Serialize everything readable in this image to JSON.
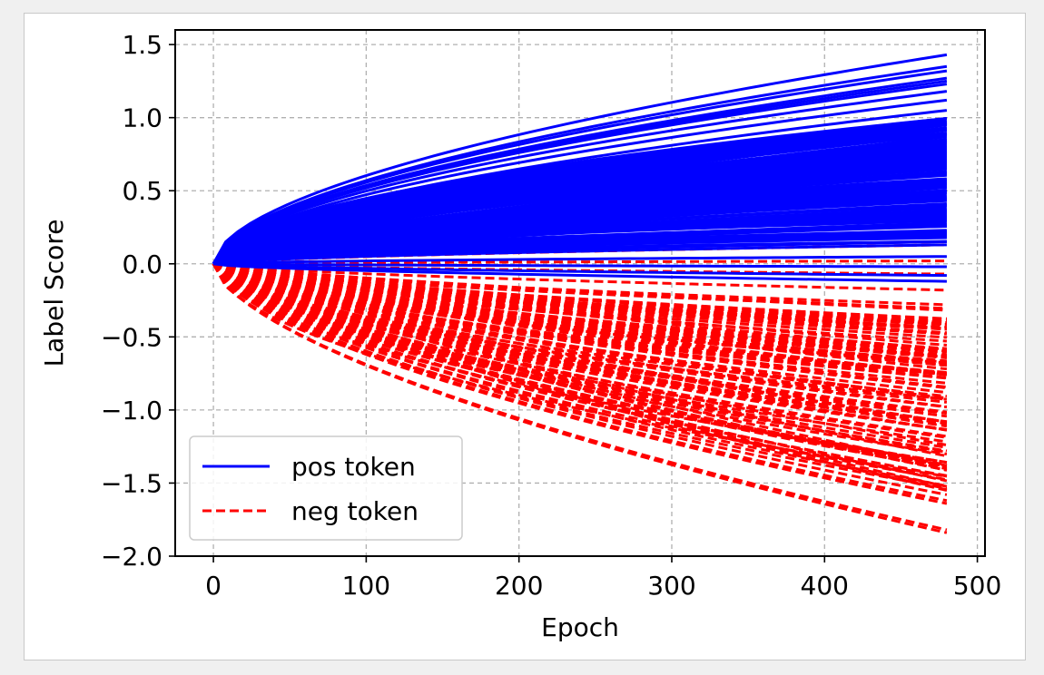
{
  "chart_data": {
    "type": "line",
    "title": "",
    "xlabel": "Epoch",
    "ylabel": "Label Score",
    "xlim": [
      -25,
      505
    ],
    "ylim": [
      -2.0,
      1.6
    ],
    "xticks": [
      0,
      100,
      200,
      300,
      400,
      500
    ],
    "yticks": [
      1.5,
      1.0,
      0.5,
      0.0,
      -0.5,
      -1.0,
      -1.5,
      -2.0
    ],
    "xtick_labels": [
      "0",
      "100",
      "200",
      "300",
      "400",
      "500"
    ],
    "ytick_labels": [
      "1.5",
      "1.0",
      "0.5",
      "0.0",
      "−0.5",
      "−1.0",
      "−1.5",
      "−2.0"
    ],
    "grid": true,
    "legend_position": "lower-left",
    "x_end": 480,
    "series": [
      {
        "name": "pos token",
        "color": "#0000ff",
        "style": "solid",
        "notable_final_values": [
          1.43,
          1.35,
          1.32,
          1.27,
          1.25,
          1.23,
          1.18,
          1.12,
          1.05,
          0.98,
          0.92,
          0.85,
          0.78,
          0.7,
          0.62,
          0.55,
          0.47,
          0.4,
          0.33,
          0.26,
          0.2,
          0.13,
          0.05,
          -0.02,
          -0.08,
          -0.12
        ],
        "band_final_range": [
          0.15,
          1.0
        ]
      },
      {
        "name": "neg token",
        "color": "#ff0000",
        "style": "dashed",
        "notable_final_values": [
          0.27,
          0.13,
          0.02,
          -0.07,
          -0.18,
          -0.28,
          -0.38,
          -0.48,
          -0.58,
          -0.68,
          -0.78,
          -0.88,
          -0.98,
          -1.08,
          -1.18,
          -1.28,
          -1.38,
          -1.45,
          -1.52,
          -1.58,
          -1.62,
          -1.64,
          -1.82,
          -1.84
        ],
        "band_final_range": [
          -1.55,
          -0.3
        ]
      }
    ],
    "legend": [
      "pos token",
      "neg token"
    ]
  }
}
